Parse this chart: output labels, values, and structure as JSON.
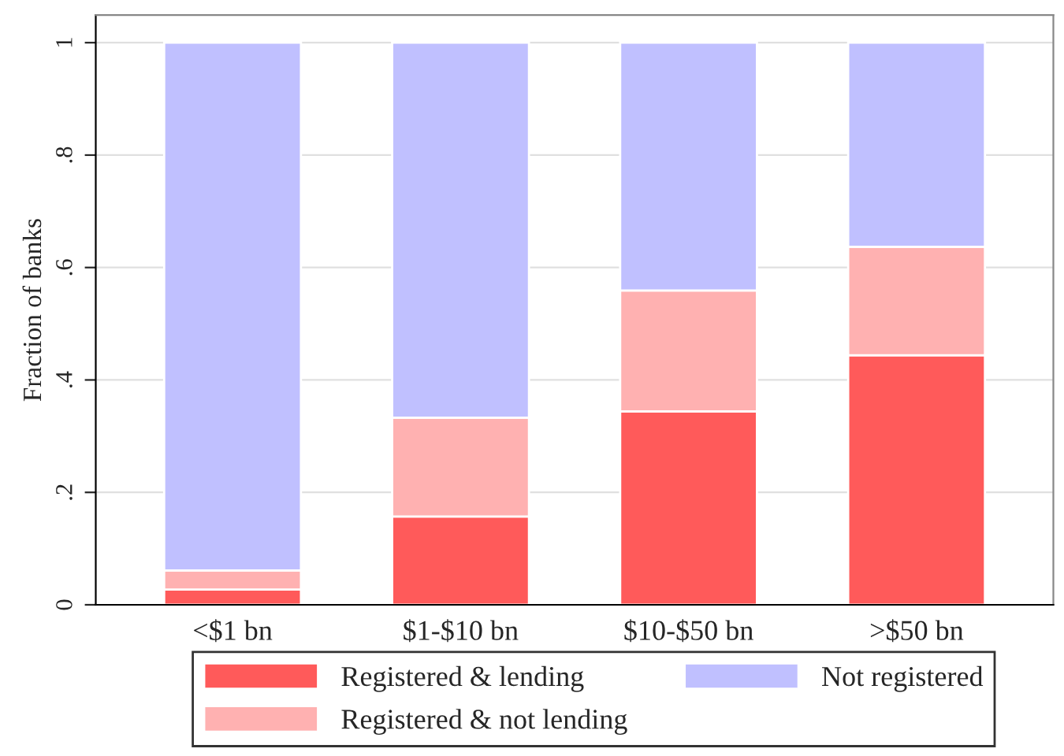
{
  "chart_data": {
    "type": "bar",
    "stacked": true,
    "ylabel": "Fraction of banks",
    "categories": [
      "<$1 bn",
      "$1-$10 bn",
      "$10-$50 bn",
      ">$50 bn"
    ],
    "series": [
      {
        "name": "Registered & lending",
        "color": "#ff5a5a",
        "values": [
          0.027,
          0.157,
          0.344,
          0.444
        ]
      },
      {
        "name": "Registered & not lending",
        "color": "#ffb1b1",
        "values": [
          0.034,
          0.176,
          0.215,
          0.193
        ]
      },
      {
        "name": "Not registered",
        "color": "#c0c0ff",
        "values": [
          0.939,
          0.667,
          0.441,
          0.363
        ]
      }
    ],
    "ylim": [
      0,
      1.049
    ],
    "yticks": [
      0,
      {
        "value": 0.2,
        "label": ".2"
      },
      {
        "value": 0.4,
        "label": ".4"
      },
      {
        "value": 0.6,
        "label": ".6"
      },
      {
        "value": 0.8,
        "label": ".8"
      },
      1
    ],
    "grid": "y",
    "legend": "bottom"
  }
}
